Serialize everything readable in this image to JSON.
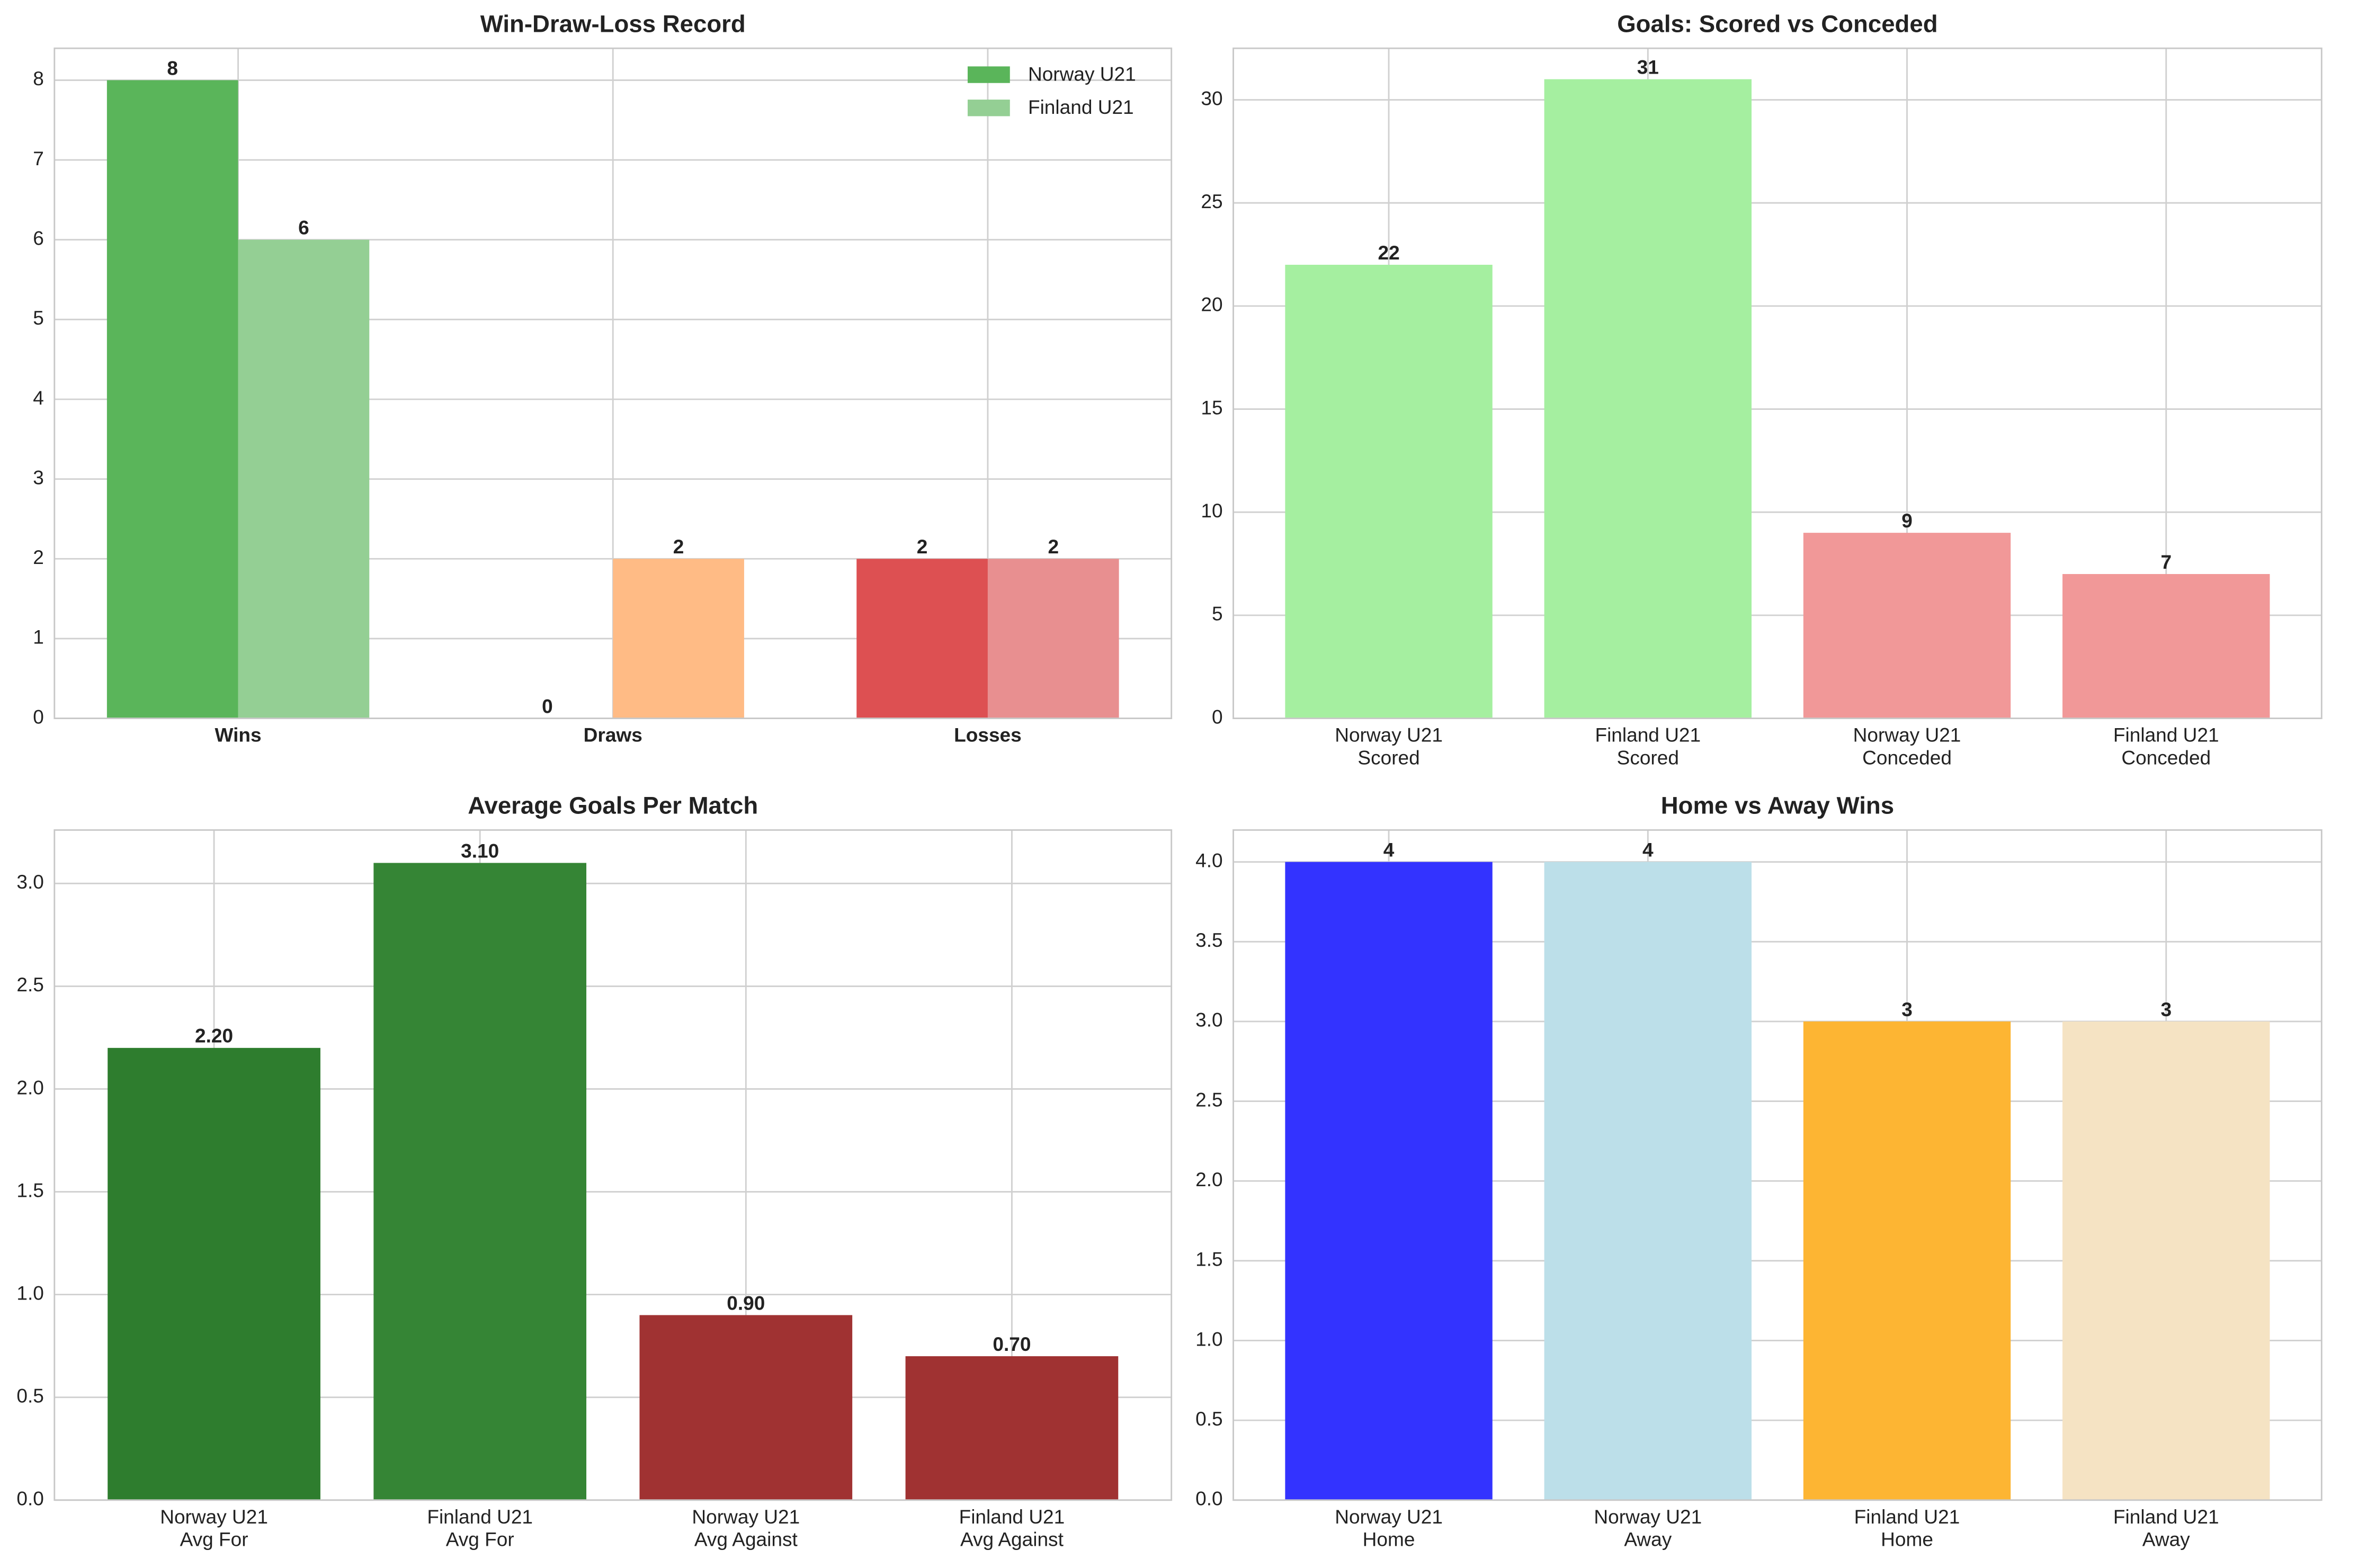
{
  "chart_data": [
    {
      "type": "bar",
      "title": "Win-Draw-Loss Record",
      "categories": [
        "Wins",
        "Draws",
        "Losses"
      ],
      "xtick_fontweight": "bold",
      "series": [
        {
          "name": "Norway U21",
          "color": "#5ab55a",
          "colors": [
            "#5ab55a",
            "#ffa552",
            "#dd5052"
          ],
          "values": [
            8,
            0,
            2
          ]
        },
        {
          "name": "Finland U21",
          "color": "#94cf94",
          "colors": [
            "#94cf94",
            "#ffbb85",
            "#e88f90"
          ],
          "values": [
            6,
            2,
            2
          ]
        }
      ],
      "ylim": [
        0,
        8.4
      ],
      "yticks": [
        0,
        1,
        2,
        3,
        4,
        5,
        6,
        7,
        8
      ],
      "grid": true,
      "legend": "upper right"
    },
    {
      "type": "bar",
      "title": "Goals: Scored vs Conceded",
      "categories": [
        [
          "Norway U21",
          "Scored"
        ],
        [
          "Finland U21",
          "Scored"
        ],
        [
          "Norway U21",
          "Conceded"
        ],
        [
          "Finland U21",
          "Conceded"
        ]
      ],
      "values": [
        22,
        31,
        9,
        7
      ],
      "colors": [
        "#a5efa0",
        "#a5efa0",
        "#f19898",
        "#f19898"
      ],
      "ylim": [
        0,
        32.5
      ],
      "yticks": [
        0,
        5,
        10,
        15,
        20,
        25,
        30
      ],
      "grid": true
    },
    {
      "type": "bar",
      "title": "Average Goals Per Match",
      "categories": [
        [
          "Norway U21",
          "Avg For"
        ],
        [
          "Finland U21",
          "Avg For"
        ],
        [
          "Norway U21",
          "Avg Against"
        ],
        [
          "Finland U21",
          "Avg Against"
        ]
      ],
      "values": [
        2.2,
        3.1,
        0.9,
        0.7
      ],
      "value_labels": [
        "2.20",
        "3.10",
        "0.90",
        "0.70"
      ],
      "colors": [
        "#2e7d2e",
        "#358535",
        "#a03232",
        "#a03232"
      ],
      "ylim": [
        0,
        3.26
      ],
      "yticks": [
        {
          "value": 0,
          "label": "0.0"
        },
        {
          "value": 0.5,
          "label": "0.5"
        },
        {
          "value": 1,
          "label": "1.0"
        },
        {
          "value": 1.5,
          "label": "1.5"
        },
        {
          "value": 2,
          "label": "2.0"
        },
        {
          "value": 2.5,
          "label": "2.5"
        },
        {
          "value": 3,
          "label": "3.0"
        }
      ],
      "grid": true
    },
    {
      "type": "bar",
      "title": "Home vs Away Wins",
      "categories": [
        [
          "Norway U21",
          "Home"
        ],
        [
          "Norway U21",
          "Away"
        ],
        [
          "Finland U21",
          "Home"
        ],
        [
          "Finland U21",
          "Away"
        ]
      ],
      "values": [
        4,
        4,
        3,
        3
      ],
      "colors": [
        "#3333ff",
        "#bcdfe9",
        "#fdb533",
        "#f5e3c3"
      ],
      "ylim": [
        0,
        4.2
      ],
      "yticks": [
        {
          "value": 0,
          "label": "0.0"
        },
        {
          "value": 0.5,
          "label": "0.5"
        },
        {
          "value": 1,
          "label": "1.0"
        },
        {
          "value": 1.5,
          "label": "1.5"
        },
        {
          "value": 2,
          "label": "2.0"
        },
        {
          "value": 2.5,
          "label": "2.5"
        },
        {
          "value": 3,
          "label": "3.0"
        },
        {
          "value": 3.5,
          "label": "3.5"
        },
        {
          "value": 4,
          "label": "4.0"
        }
      ],
      "grid": true
    }
  ]
}
